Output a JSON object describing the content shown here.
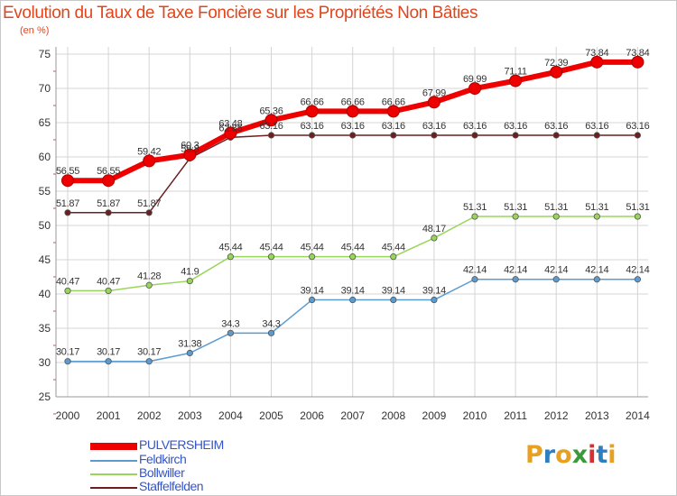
{
  "title": "Evolution du Taux de Taxe Foncière sur les Propriétés Non Bâties",
  "subtitle": "(en %)",
  "logo": {
    "letters": [
      "P",
      "r",
      "o",
      "x",
      "i",
      "t",
      "i"
    ],
    "colors": [
      "#e8a020",
      "#2e7fc0",
      "#e8a020",
      "#3a9a3a",
      "#d83030",
      "#2e7fc0",
      "#e8a020"
    ]
  },
  "chart_data": {
    "type": "line",
    "categories": [
      "2000",
      "2001",
      "2002",
      "2003",
      "2004",
      "2005",
      "2006",
      "2007",
      "2008",
      "2009",
      "2010",
      "2011",
      "2012",
      "2013",
      "2014"
    ],
    "ylim": [
      25,
      75
    ],
    "yticks": [
      "25",
      "30",
      "35",
      "40",
      "45",
      "50",
      "55",
      "60",
      "65",
      "70",
      "75"
    ],
    "grid": true,
    "series": [
      {
        "name": "PULVERSHEIM",
        "color": "#ee0000",
        "values": [
          56.55,
          56.55,
          59.42,
          60.3,
          63.48,
          65.36,
          66.66,
          66.66,
          66.66,
          67.99,
          69.99,
          71.11,
          72.39,
          73.84,
          73.84
        ],
        "labels": [
          "56.55",
          "56.55",
          "59.42",
          "60.3",
          "63.48",
          "65.36",
          "66.66",
          "66.66",
          "66.66",
          "67.99",
          "69.99",
          "71.11",
          "72.39",
          "73.84",
          "73.84"
        ]
      },
      {
        "name": "Feldkirch",
        "color": "#5b9bd0",
        "values": [
          30.17,
          30.17,
          30.17,
          31.38,
          34.3,
          34.3,
          39.14,
          39.14,
          39.14,
          39.14,
          42.14,
          42.14,
          42.14,
          42.14,
          42.14
        ],
        "labels": [
          "30.17",
          "30.17",
          "30.17",
          "31.38",
          "34.3",
          "34.3",
          "39.14",
          "39.14",
          "39.14",
          "39.14",
          "42.14",
          "42.14",
          "42.14",
          "42.14",
          "42.14"
        ]
      },
      {
        "name": "Bollwiller",
        "color": "#99d55a",
        "values": [
          40.47,
          40.47,
          41.28,
          41.9,
          45.44,
          45.44,
          45.44,
          45.44,
          45.44,
          48.17,
          51.31,
          51.31,
          51.31,
          51.31,
          51.31
        ],
        "labels": [
          "40.47",
          "40.47",
          "41.28",
          "41.9",
          "45.44",
          "45.44",
          "45.44",
          "45.44",
          "45.44",
          "48.17",
          "51.31",
          "51.31",
          "51.31",
          "51.31",
          "51.31"
        ]
      },
      {
        "name": "Staffelfelden",
        "color": "#6b1f1f",
        "values": [
          51.87,
          51.87,
          51.87,
          59.8,
          62.85,
          63.16,
          63.16,
          63.16,
          63.16,
          63.16,
          63.16,
          63.16,
          63.16,
          63.16,
          63.16
        ],
        "labels": [
          "51.87",
          "51.87",
          "51.87",
          "59.8",
          "62.85",
          "63.16",
          "63.16",
          "63.16",
          "63.16",
          "63.16",
          "63.16",
          "63.16",
          "63.16",
          "63.16",
          "63.16"
        ]
      }
    ]
  }
}
